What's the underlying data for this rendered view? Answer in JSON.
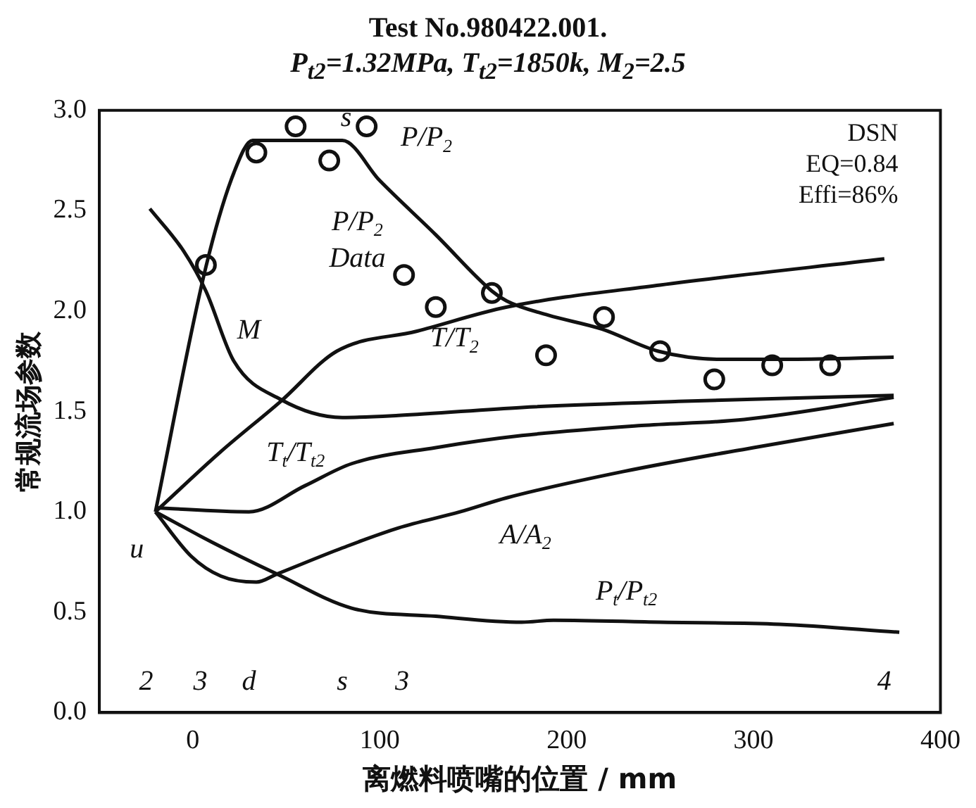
{
  "chart_data": {
    "type": "line",
    "title": "Test  No.980422.001.",
    "subtitle": "P$_{t2}$=1.32MPa, T$_{t2}$=1850k, M$_{2}$=2.5",
    "xlabel": "离燃料喷嘴的位置 / mm",
    "ylabel": "常规流场参数",
    "xlim": [
      -50,
      400
    ],
    "xticks": [
      0,
      100,
      200,
      300,
      400
    ],
    "ylim": [
      0,
      3
    ],
    "yticks": [
      {
        "value": 0,
        "label": "0.0"
      },
      {
        "value": 0.5,
        "label": "0.5"
      },
      {
        "value": 1,
        "label": "1.0"
      },
      {
        "value": 1.5,
        "label": "1.5"
      },
      {
        "value": 2,
        "label": "2.0"
      },
      {
        "value": 2.5,
        "label": "2.5"
      },
      {
        "value": 3,
        "label": "3.0"
      }
    ],
    "grid": false,
    "legend": false,
    "line_style": "solid",
    "marker": "none",
    "series": [
      {
        "name": "P/P$_{2}$",
        "color": "#111111",
        "x": [
          -20,
          7,
          22,
          32,
          50,
          80,
          100,
          130,
          160,
          168,
          190,
          219,
          249,
          282,
          320,
          375
        ],
        "values": [
          1.0,
          2.22,
          2.69,
          2.85,
          2.85,
          2.85,
          2.65,
          2.38,
          2.1,
          2.05,
          1.98,
          1.91,
          1.8,
          1.76,
          1.76,
          1.77
        ]
      },
      {
        "name": "P/P$_{2}$ Data",
        "type": "scatter",
        "marker": "circle",
        "color": "#111111",
        "x": [
          7,
          34,
          55,
          73,
          93,
          113,
          130,
          160,
          189,
          220,
          250,
          279,
          310,
          341
        ],
        "values": [
          2.23,
          2.79,
          2.92,
          2.75,
          2.92,
          2.18,
          2.02,
          2.09,
          1.78,
          1.97,
          1.8,
          1.66,
          1.73,
          1.73
        ]
      },
      {
        "name": "M",
        "color": "#111111",
        "x": [
          -23,
          -5,
          7,
          22,
          47,
          80,
          110,
          176,
          260,
          375
        ],
        "values": [
          2.51,
          2.3,
          2.1,
          1.75,
          1.56,
          1.47,
          1.48,
          1.52,
          1.55,
          1.58
        ]
      },
      {
        "name": "T/T$_{2}$",
        "color": "#111111",
        "x": [
          -20,
          15,
          47,
          77,
          120,
          168,
          250,
          370
        ],
        "values": [
          1.0,
          1.3,
          1.55,
          1.8,
          1.9,
          2.02,
          2.13,
          2.26
        ]
      },
      {
        "name": "T$_{t}$/T$_{t2}$",
        "color": "#111111",
        "x": [
          -20,
          30,
          60,
          85,
          130,
          176,
          240,
          295,
          375
        ],
        "values": [
          1.02,
          1.0,
          1.13,
          1.24,
          1.32,
          1.38,
          1.43,
          1.46,
          1.57
        ]
      },
      {
        "name": "A/A$_{2}$",
        "color": "#111111",
        "x": [
          -20,
          -1,
          15,
          34,
          45,
          80,
          110,
          143,
          168,
          230,
          300,
          375
        ],
        "values": [
          1.0,
          0.78,
          0.68,
          0.65,
          0.69,
          0.82,
          0.92,
          1.0,
          1.07,
          1.2,
          1.32,
          1.44
        ]
      },
      {
        "name": "P$_{t}$/P$_{t2}$",
        "color": "#111111",
        "x": [
          -20,
          10,
          45,
          85,
          130,
          176,
          193,
          250,
          314,
          378
        ],
        "values": [
          1.0,
          0.85,
          0.69,
          0.52,
          0.48,
          0.45,
          0.46,
          0.45,
          0.44,
          0.4
        ]
      }
    ],
    "annotations": [
      "s",
      "u",
      "2",
      "3",
      "d",
      "s",
      "3",
      "4",
      "DSN",
      "EQ=0.84",
      "Effi=86%"
    ]
  }
}
